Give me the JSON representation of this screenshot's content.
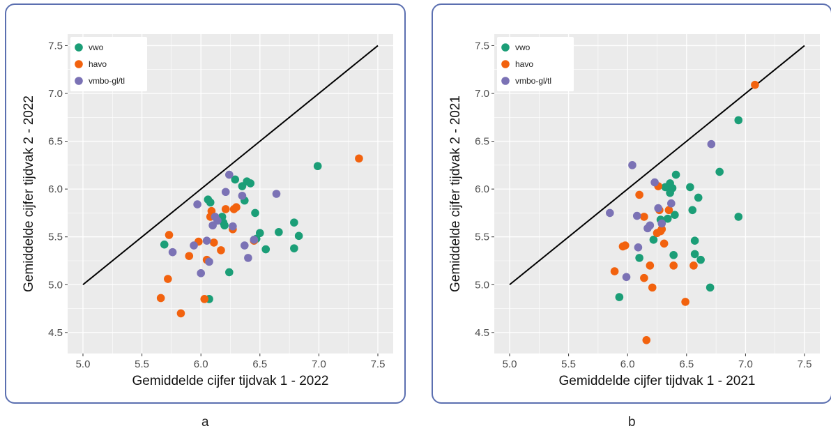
{
  "colors": {
    "vwo": "#1b9e77",
    "havo": "#f2620e",
    "vmbo": "#7b72b5",
    "panel_bg": "#ebebeb",
    "grid": "#ffffff",
    "border": "#5b6fb0"
  },
  "chart_data": [
    {
      "type": "scatter",
      "panel_label": "a",
      "xlabel": "Gemiddelde cijfer tijdvak 1 - 2022",
      "ylabel": "Gemiddelde cijfer tijdvak 2 - 2022",
      "xlim": [
        4.87,
        7.63
      ],
      "ylim": [
        4.28,
        7.62
      ],
      "xticks": [
        "5.0",
        "5.5",
        "6.0",
        "6.5",
        "7.0",
        "7.5"
      ],
      "yticks": [
        "4.5",
        "5.0",
        "5.5",
        "6.0",
        "6.5",
        "7.0",
        "7.5"
      ],
      "reference_line": [
        [
          5.0,
          5.0
        ],
        [
          7.5,
          7.5
        ]
      ],
      "legend": [
        "vwo",
        "havo",
        "vmbo-gl/tl"
      ],
      "legend_position": "top-left",
      "grid": true,
      "series": [
        {
          "name": "vwo",
          "points": [
            [
              5.69,
              5.42
            ],
            [
              6.06,
              5.89
            ],
            [
              6.08,
              5.86
            ],
            [
              6.07,
              4.85
            ],
            [
              6.18,
              5.71
            ],
            [
              6.19,
              5.65
            ],
            [
              6.2,
              5.62
            ],
            [
              6.24,
              5.13
            ],
            [
              6.29,
              6.1
            ],
            [
              6.35,
              6.03
            ],
            [
              6.37,
              5.88
            ],
            [
              6.39,
              6.08
            ],
            [
              6.42,
              6.06
            ],
            [
              6.46,
              5.75
            ],
            [
              6.47,
              5.48
            ],
            [
              6.5,
              5.54
            ],
            [
              6.55,
              5.37
            ],
            [
              6.66,
              5.55
            ],
            [
              6.79,
              5.65
            ],
            [
              6.79,
              5.38
            ],
            [
              6.83,
              5.51
            ],
            [
              6.99,
              6.24
            ]
          ]
        },
        {
          "name": "havo",
          "points": [
            [
              5.66,
              4.86
            ],
            [
              5.72,
              5.06
            ],
            [
              5.73,
              5.52
            ],
            [
              5.83,
              4.7
            ],
            [
              5.9,
              5.3
            ],
            [
              5.98,
              5.45
            ],
            [
              6.03,
              4.85
            ],
            [
              6.05,
              5.26
            ],
            [
              6.08,
              5.71
            ],
            [
              6.09,
              5.77
            ],
            [
              6.11,
              5.44
            ],
            [
              6.17,
              5.36
            ],
            [
              6.21,
              5.79
            ],
            [
              6.27,
              5.58
            ],
            [
              6.28,
              5.79
            ],
            [
              6.3,
              5.81
            ],
            [
              6.45,
              5.46
            ],
            [
              7.34,
              6.32
            ]
          ]
        },
        {
          "name": "vmbo-gl/tl",
          "points": [
            [
              5.76,
              5.34
            ],
            [
              5.94,
              5.41
            ],
            [
              5.97,
              5.84
            ],
            [
              6.0,
              5.12
            ],
            [
              6.05,
              5.46
            ],
            [
              6.07,
              5.24
            ],
            [
              6.1,
              5.62
            ],
            [
              6.12,
              5.71
            ],
            [
              6.14,
              5.67
            ],
            [
              6.21,
              5.97
            ],
            [
              6.24,
              6.15
            ],
            [
              6.27,
              5.61
            ],
            [
              6.35,
              5.93
            ],
            [
              6.37,
              5.41
            ],
            [
              6.4,
              5.28
            ],
            [
              6.45,
              5.47
            ],
            [
              6.64,
              5.95
            ]
          ]
        }
      ]
    },
    {
      "type": "scatter",
      "panel_label": "b",
      "xlabel": "Gemiddelde cijfer tijdvak 1 - 2021",
      "ylabel": "Gemiddelde cijfer tijdvak 2 - 2021",
      "xlim": [
        4.87,
        7.63
      ],
      "ylim": [
        4.28,
        7.62
      ],
      "xticks": [
        "5.0",
        "5.5",
        "6.0",
        "6.5",
        "7.0",
        "7.5"
      ],
      "yticks": [
        "4.5",
        "5.0",
        "5.5",
        "6.0",
        "6.5",
        "7.0",
        "7.5"
      ],
      "reference_line": [
        [
          5.0,
          5.0
        ],
        [
          7.5,
          7.5
        ]
      ],
      "legend": [
        "vwo",
        "havo",
        "vmbo-gl/tl"
      ],
      "legend_position": "top-left",
      "grid": true,
      "series": [
        {
          "name": "vwo",
          "points": [
            [
              5.93,
              4.87
            ],
            [
              6.1,
              5.28
            ],
            [
              6.22,
              5.47
            ],
            [
              6.28,
              5.68
            ],
            [
              6.32,
              6.02
            ],
            [
              6.34,
              5.69
            ],
            [
              6.35,
              6.03
            ],
            [
              6.36,
              6.06
            ],
            [
              6.36,
              5.96
            ],
            [
              6.38,
              6.01
            ],
            [
              6.39,
              5.31
            ],
            [
              6.4,
              5.73
            ],
            [
              6.41,
              6.15
            ],
            [
              6.53,
              6.02
            ],
            [
              6.55,
              5.78
            ],
            [
              6.57,
              5.46
            ],
            [
              6.57,
              5.32
            ],
            [
              6.6,
              5.91
            ],
            [
              6.62,
              5.26
            ],
            [
              6.7,
              4.97
            ],
            [
              6.78,
              6.18
            ],
            [
              6.94,
              5.71
            ],
            [
              6.94,
              6.72
            ]
          ]
        },
        {
          "name": "havo",
          "points": [
            [
              5.89,
              5.14
            ],
            [
              5.96,
              5.4
            ],
            [
              5.98,
              5.41
            ],
            [
              6.1,
              5.94
            ],
            [
              6.14,
              5.71
            ],
            [
              6.14,
              5.07
            ],
            [
              6.16,
              4.42
            ],
            [
              6.19,
              5.2
            ],
            [
              6.21,
              4.97
            ],
            [
              6.25,
              5.54
            ],
            [
              6.26,
              6.03
            ],
            [
              6.27,
              5.78
            ],
            [
              6.28,
              5.56
            ],
            [
              6.29,
              5.58
            ],
            [
              6.31,
              5.43
            ],
            [
              6.35,
              5.78
            ],
            [
              6.39,
              5.2
            ],
            [
              6.49,
              4.82
            ],
            [
              6.56,
              5.2
            ],
            [
              7.08,
              7.09
            ]
          ]
        },
        {
          "name": "vmbo-gl/tl",
          "points": [
            [
              5.85,
              5.75
            ],
            [
              5.99,
              5.08
            ],
            [
              6.04,
              6.25
            ],
            [
              6.08,
              5.72
            ],
            [
              6.09,
              5.39
            ],
            [
              6.17,
              5.59
            ],
            [
              6.19,
              5.62
            ],
            [
              6.23,
              6.07
            ],
            [
              6.26,
              5.8
            ],
            [
              6.29,
              5.64
            ],
            [
              6.37,
              5.85
            ],
            [
              6.71,
              6.47
            ]
          ]
        }
      ]
    }
  ]
}
